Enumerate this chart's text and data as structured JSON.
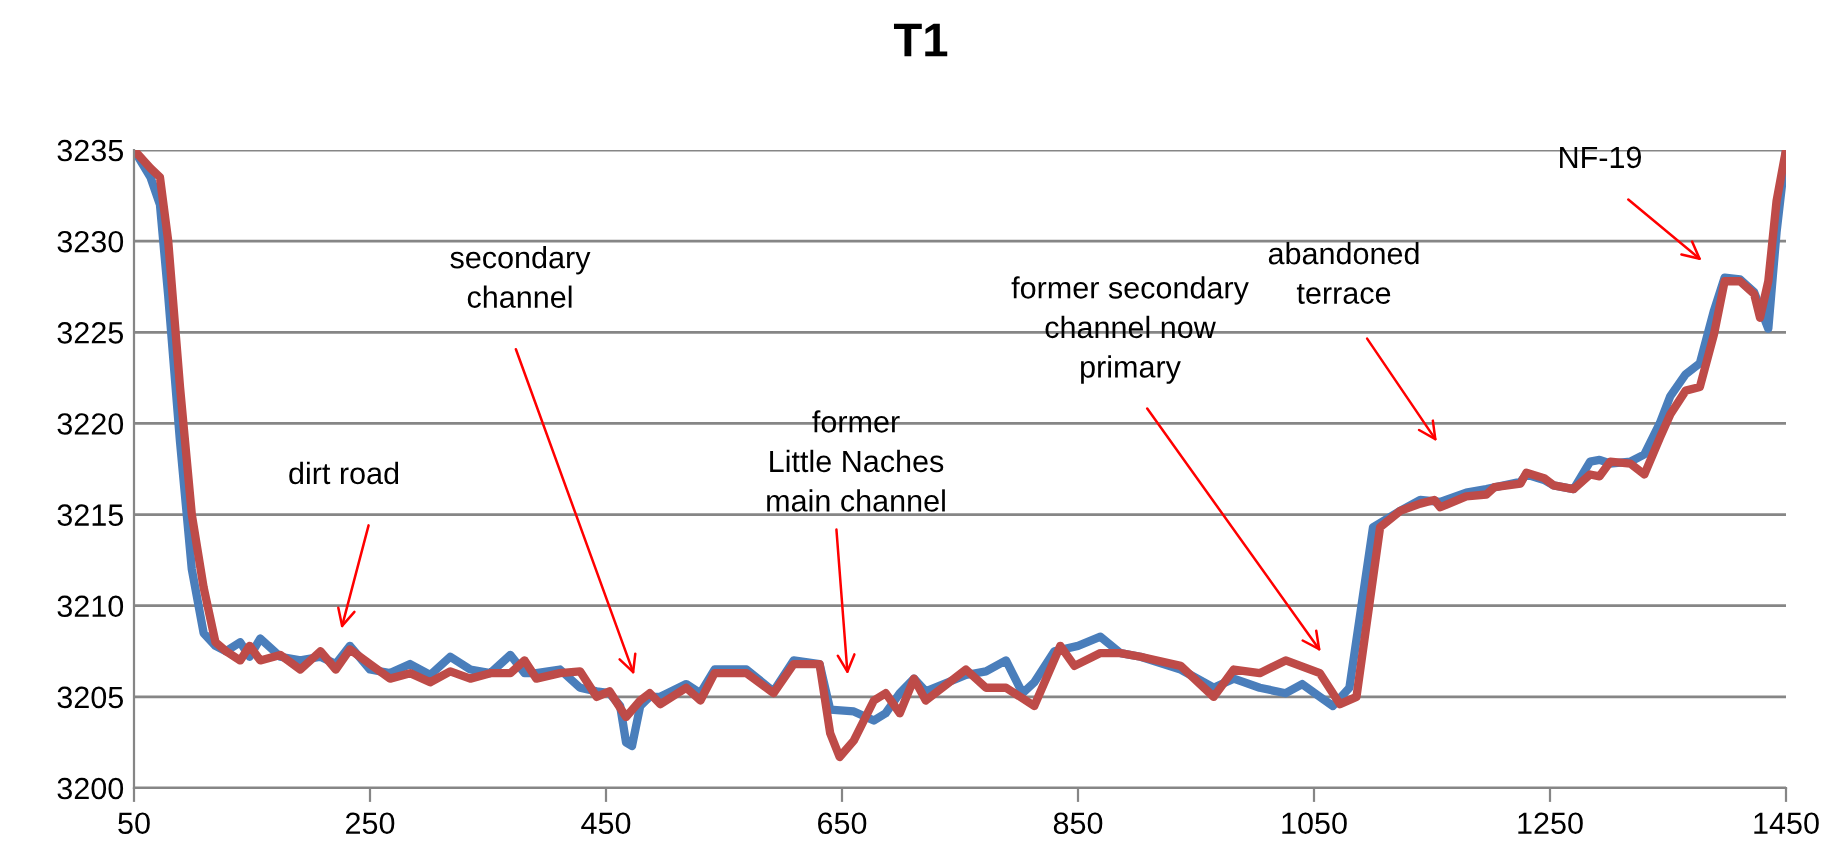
{
  "chart_data": {
    "type": "line",
    "title": "T1",
    "xlim": [
      50,
      1450
    ],
    "xticks": [
      50,
      250,
      450,
      650,
      850,
      1050,
      1250,
      1450
    ],
    "ylim": [
      3200,
      3235
    ],
    "yticks": [
      3200,
      3205,
      3210,
      3215,
      3220,
      3225,
      3230,
      3235
    ],
    "grid": "y",
    "legend": false,
    "marker": "none",
    "line_style": "solid",
    "series": [
      {
        "color": "#4a7ebb",
        "x": [
          50,
          64,
          72,
          79,
          89,
          99,
          109,
          119,
          128,
          140,
          148,
          157,
          174,
          191,
          208,
          221,
          233,
          250,
          267,
          284,
          301,
          318,
          335,
          352,
          369,
          381,
          391,
          411,
          428,
          442,
          453,
          462,
          467,
          472,
          479,
          487,
          496,
          518,
          530,
          542,
          569,
          592,
          609,
          631,
          640,
          660,
          677,
          687,
          699,
          711,
          721,
          755,
          772,
          789,
          803,
          813,
          830,
          850,
          869,
          886,
          903,
          937,
          965,
          982,
          1004,
          1026,
          1040,
          1055,
          1066,
          1080,
          1100,
          1123,
          1140,
          1157,
          1179,
          1196,
          1225,
          1230,
          1245,
          1253,
          1270,
          1284,
          1292,
          1301,
          1318,
          1330,
          1343,
          1352,
          1365,
          1377,
          1389,
          1398,
          1411,
          1423,
          1435,
          1442,
          1450
        ],
        "values": [
          3235,
          3233.5,
          3232,
          3227,
          3219,
          3212,
          3208.5,
          3207.8,
          3207.5,
          3208,
          3207.2,
          3208.2,
          3207.2,
          3207,
          3207.2,
          3206.8,
          3207.8,
          3206.5,
          3206.3,
          3206.8,
          3206.2,
          3207.2,
          3206.5,
          3206.3,
          3207.3,
          3206.3,
          3206.3,
          3206.5,
          3205.5,
          3205.3,
          3205.2,
          3204.5,
          3202.5,
          3202.3,
          3204.5,
          3205,
          3205,
          3205.7,
          3205.2,
          3206.5,
          3206.5,
          3205.3,
          3207,
          3206.8,
          3204.3,
          3204.2,
          3203.7,
          3204.1,
          3205.2,
          3206,
          3205.3,
          3206.2,
          3206.4,
          3207,
          3205.2,
          3205.8,
          3207.5,
          3207.8,
          3208.3,
          3207.4,
          3207.2,
          3206.5,
          3205.5,
          3206,
          3205.5,
          3205.2,
          3205.7,
          3205,
          3204.5,
          3205.5,
          3214.3,
          3215.2,
          3215.8,
          3215.7,
          3216.2,
          3216.4,
          3216.8,
          3217.2,
          3216.9,
          3216.6,
          3216.4,
          3217.9,
          3218,
          3217.8,
          3217.9,
          3218.3,
          3220,
          3221.5,
          3222.7,
          3223.3,
          3226.2,
          3228,
          3227.9,
          3227.2,
          3225.2,
          3230.5,
          3235
        ]
      },
      {
        "color": "#be4b48",
        "x": [
          50,
          64,
          72,
          79,
          89,
          99,
          109,
          119,
          128,
          140,
          148,
          157,
          174,
          191,
          208,
          221,
          233,
          250,
          267,
          284,
          301,
          318,
          335,
          352,
          369,
          381,
          391,
          411,
          428,
          442,
          453,
          467,
          479,
          487,
          496,
          518,
          530,
          542,
          569,
          592,
          609,
          631,
          640,
          648,
          660,
          677,
          687,
          699,
          711,
          721,
          755,
          772,
          789,
          813,
          835,
          847,
          869,
          886,
          903,
          937,
          965,
          982,
          1004,
          1026,
          1055,
          1072,
          1086,
          1106,
          1123,
          1140,
          1152,
          1157,
          1179,
          1196,
          1203,
          1225,
          1230,
          1245,
          1253,
          1270,
          1284,
          1292,
          1301,
          1318,
          1330,
          1343,
          1352,
          1365,
          1377,
          1389,
          1398,
          1411,
          1423,
          1428,
          1435,
          1442,
          1450
        ],
        "values": [
          3235,
          3234,
          3233.5,
          3230,
          3222,
          3215,
          3211,
          3208,
          3207.5,
          3207,
          3207.8,
          3207,
          3207.3,
          3206.5,
          3207.5,
          3206.5,
          3207.6,
          3206.8,
          3206,
          3206.3,
          3205.8,
          3206.4,
          3206,
          3206.3,
          3206.3,
          3207,
          3206,
          3206.3,
          3206.4,
          3205,
          3205.3,
          3203.9,
          3204.8,
          3205.2,
          3204.6,
          3205.5,
          3204.8,
          3206.3,
          3206.3,
          3205.2,
          3206.8,
          3206.8,
          3203,
          3201.7,
          3202.6,
          3204.8,
          3205.2,
          3204.1,
          3206,
          3204.8,
          3206.5,
          3205.5,
          3205.5,
          3204.5,
          3207.8,
          3206.7,
          3207.4,
          3207.4,
          3207.2,
          3206.7,
          3205,
          3206.5,
          3206.3,
          3207,
          3206.3,
          3204.6,
          3205,
          3214.3,
          3215.2,
          3215.6,
          3215.8,
          3215.4,
          3216,
          3216.1,
          3216.5,
          3216.7,
          3217.3,
          3217,
          3216.6,
          3216.4,
          3217.2,
          3217.1,
          3217.9,
          3217.8,
          3217.2,
          3219.2,
          3220.5,
          3221.8,
          3222,
          3224.9,
          3227.8,
          3227.8,
          3227.1,
          3225.8,
          3227.8,
          3232.2,
          3235
        ]
      }
    ],
    "annotations": [
      "dirt road",
      "secondary\nchannel",
      "former\nLittle Naches\nmain channel",
      "former secondary\nchannel now\nprimary",
      "abandoned\nterrace",
      "NF-19"
    ]
  }
}
